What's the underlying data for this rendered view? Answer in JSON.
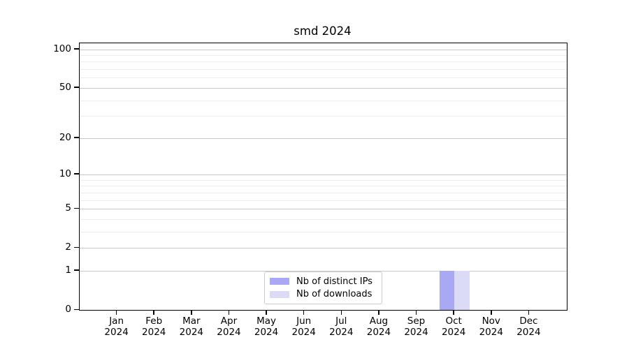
{
  "figure": {
    "background_color": "#ffffff",
    "text_color": "#000000"
  },
  "chart_data": {
    "type": "bar",
    "title": "smd 2024",
    "x_months": [
      "Jan",
      "Feb",
      "Mar",
      "Apr",
      "May",
      "Jun",
      "Jul",
      "Aug",
      "Sep",
      "Oct",
      "Nov",
      "Dec"
    ],
    "x_year": "2024",
    "series": [
      {
        "name": "Nb of distinct IPs",
        "color": "#a8a8f5",
        "values": [
          0,
          0,
          0,
          0,
          0,
          0,
          0,
          0,
          0,
          1,
          0,
          0
        ]
      },
      {
        "name": "Nb of downloads",
        "color": "#dbdbf8",
        "values": [
          0,
          0,
          0,
          0,
          0,
          0,
          0,
          0,
          0,
          1,
          0,
          0
        ]
      }
    ],
    "y_axis": {
      "scale": "log1p",
      "major_ticks": [
        100,
        50,
        20,
        10,
        5,
        2,
        1,
        0
      ],
      "minor_ticks": [
        90,
        80,
        70,
        60,
        40,
        30,
        9,
        8,
        7,
        6,
        4,
        3
      ],
      "ylim": [
        0,
        112
      ]
    },
    "grid": {
      "enabled": true,
      "major_color": "#c9c9c9",
      "minor_color": "#ededed"
    },
    "legend": {
      "position": "lower center"
    }
  }
}
